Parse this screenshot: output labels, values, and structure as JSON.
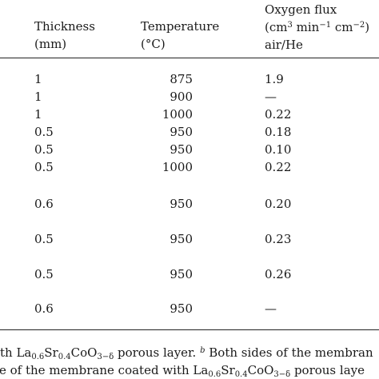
{
  "header": {
    "thickness": "Thickness",
    "thickness_unit": "(mm)",
    "temperature": "Temperature",
    "temperature_unit": "(°C)",
    "flux": "Oxygen flux",
    "flux_unit_pre": "(cm",
    "flux_unit_sup1": "3",
    "flux_unit_mid": " min",
    "flux_unit_sup2": "−1",
    "flux_unit_mid2": " cm",
    "flux_unit_sup3": "−2",
    "flux_unit_post": ")",
    "flux_condition": "air/He"
  },
  "rows": [
    {
      "thickness": "1",
      "temperature": "875",
      "flux": "1.9"
    },
    {
      "thickness": "1",
      "temperature": "900",
      "flux": "—"
    },
    {
      "thickness": "1",
      "temperature": "1000",
      "flux": "0.22"
    },
    {
      "thickness": "0.5",
      "temperature": "950",
      "flux": "0.18"
    },
    {
      "thickness": "0.5",
      "temperature": "950",
      "flux": "0.10"
    },
    {
      "thickness": "0.5",
      "temperature": "1000",
      "flux": "0.22"
    },
    {
      "thickness": "0.6",
      "temperature": "950",
      "flux": "0.20"
    },
    {
      "thickness": "0.5",
      "temperature": "950",
      "flux": "0.23"
    },
    {
      "thickness": "0.5",
      "temperature": "950",
      "flux": "0.26"
    },
    {
      "thickness": "0.6",
      "temperature": "950",
      "flux": "—"
    }
  ],
  "footnote1": {
    "pre": "th La",
    "s1": "0.6",
    "t1": "Sr",
    "s2": "0.4",
    "t2": "CoO",
    "s3": "3−δ",
    "t3": " porous layer. ",
    "mark": "b",
    "t4": " Both sides of the membran"
  },
  "footnote2": {
    "pre": "e of the membrane coated with La",
    "s1": "0.6",
    "t1": "Sr",
    "s2": "0.4",
    "t2": "CoO",
    "s3": "3−δ",
    "t3": " porous laye"
  }
}
